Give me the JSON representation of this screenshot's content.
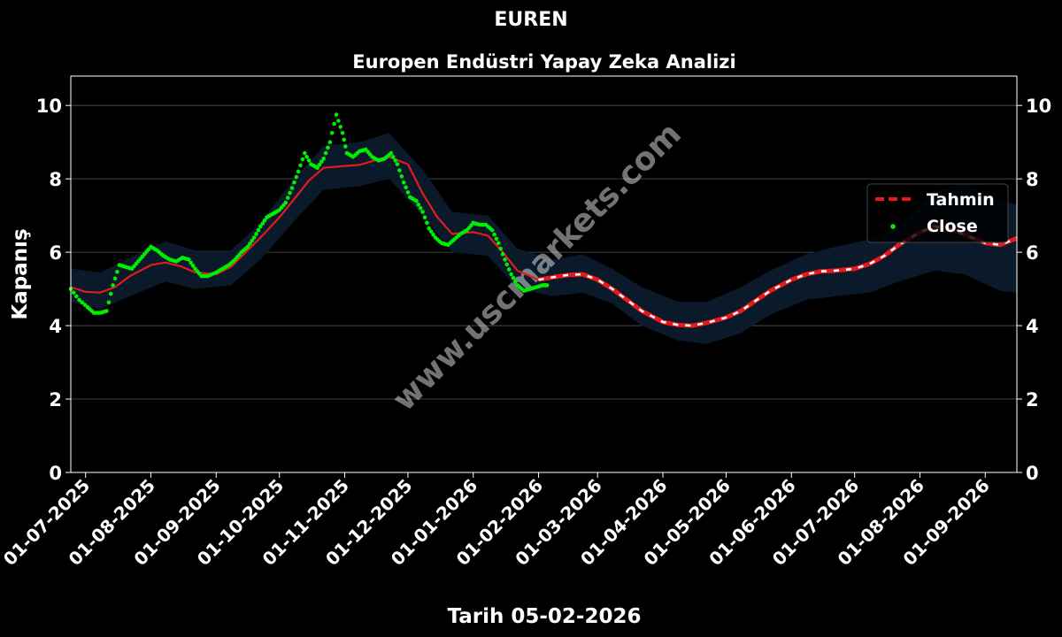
{
  "watermark": "www.uscmarkets.com",
  "colors": {
    "background": "#000000",
    "band": "#0a1a2a",
    "forecast": "#e41a1c",
    "close": "#00ee00",
    "text": "#ffffff",
    "grid": "#555555"
  },
  "chart_data": {
    "type": "line",
    "suptitle": "EUREN",
    "title": "Europen Endüstri Yapay Zeka Analizi",
    "xlabel": "Tarih 05-02-2026",
    "ylabel": "Kapanış",
    "ylim": [
      0,
      10.8
    ],
    "yticks": [
      0,
      2,
      4,
      6,
      8,
      10
    ],
    "xlim": [
      "2025-06-24",
      "2026-09-16"
    ],
    "xticks": [
      "2025-07-01",
      "2025-08-01",
      "2025-09-01",
      "2025-10-01",
      "2025-11-01",
      "2025-12-01",
      "2026-01-01",
      "2026-02-01",
      "2026-03-01",
      "2026-04-01",
      "2026-05-01",
      "2026-06-01",
      "2026-07-01",
      "2026-08-01",
      "2026-09-01"
    ],
    "xtick_labels": [
      "01-07-2025",
      "01-08-2025",
      "01-09-2025",
      "01-10-2025",
      "01-11-2025",
      "01-12-2025",
      "01-01-2026",
      "01-02-2026",
      "01-03-2026",
      "01-04-2026",
      "01-05-2026",
      "01-06-2026",
      "01-07-2026",
      "01-08-2026",
      "01-09-2026"
    ],
    "grid": true,
    "legend_position": "center-right",
    "series": [
      {
        "name": "Tahmin",
        "style": "dashed",
        "x": [
          "2025-06-24",
          "2025-07-01",
          "2025-07-08",
          "2025-07-15",
          "2025-07-22",
          "2025-08-01",
          "2025-08-08",
          "2025-08-15",
          "2025-08-22",
          "2025-09-01",
          "2025-09-08",
          "2025-09-15",
          "2025-09-22",
          "2025-10-01",
          "2025-10-08",
          "2025-10-15",
          "2025-10-22",
          "2025-11-01",
          "2025-11-08",
          "2025-11-15",
          "2025-11-22",
          "2025-12-01",
          "2025-12-08",
          "2025-12-15",
          "2025-12-22",
          "2026-01-01",
          "2026-01-08",
          "2026-01-15",
          "2026-01-22",
          "2026-02-01",
          "2026-02-08",
          "2026-02-15",
          "2026-02-22",
          "2026-03-01",
          "2026-03-08",
          "2026-03-15",
          "2026-03-22",
          "2026-04-01",
          "2026-04-08",
          "2026-04-15",
          "2026-04-22",
          "2026-05-01",
          "2026-05-08",
          "2026-05-15",
          "2026-05-22",
          "2026-06-01",
          "2026-06-08",
          "2026-06-15",
          "2026-06-22",
          "2026-07-01",
          "2026-07-08",
          "2026-07-15",
          "2026-07-22",
          "2026-08-01",
          "2026-08-08",
          "2026-08-15",
          "2026-08-22",
          "2026-09-01",
          "2026-09-08",
          "2026-09-16"
        ],
        "y": [
          5.05,
          4.92,
          4.9,
          5.05,
          5.35,
          5.65,
          5.72,
          5.62,
          5.45,
          5.4,
          5.6,
          6.0,
          6.4,
          6.95,
          7.45,
          7.95,
          8.3,
          8.35,
          8.38,
          8.5,
          8.6,
          8.4,
          7.6,
          6.95,
          6.5,
          6.55,
          6.45,
          6.0,
          5.5,
          5.25,
          5.32,
          5.38,
          5.4,
          5.25,
          5.0,
          4.7,
          4.4,
          4.1,
          4.02,
          4.0,
          4.08,
          4.22,
          4.4,
          4.68,
          4.95,
          5.25,
          5.4,
          5.48,
          5.5,
          5.55,
          5.68,
          5.9,
          6.2,
          6.55,
          6.7,
          6.65,
          6.48,
          6.25,
          6.2,
          6.38
        ]
      },
      {
        "name": "Close",
        "style": "dots",
        "x": [
          "2025-06-24",
          "2025-06-28",
          "2025-07-02",
          "2025-07-05",
          "2025-07-08",
          "2025-07-11",
          "2025-07-14",
          "2025-07-17",
          "2025-07-20",
          "2025-07-23",
          "2025-07-26",
          "2025-07-29",
          "2025-08-01",
          "2025-08-04",
          "2025-08-07",
          "2025-08-10",
          "2025-08-13",
          "2025-08-16",
          "2025-08-19",
          "2025-08-22",
          "2025-08-25",
          "2025-08-28",
          "2025-09-01",
          "2025-09-04",
          "2025-09-07",
          "2025-09-10",
          "2025-09-13",
          "2025-09-16",
          "2025-09-19",
          "2025-09-22",
          "2025-09-25",
          "2025-09-28",
          "2025-10-01",
          "2025-10-04",
          "2025-10-07",
          "2025-10-10",
          "2025-10-13",
          "2025-10-16",
          "2025-10-19",
          "2025-10-22",
          "2025-10-25",
          "2025-10-28",
          "2025-10-31",
          "2025-11-02",
          "2025-11-05",
          "2025-11-08",
          "2025-11-11",
          "2025-11-14",
          "2025-11-17",
          "2025-11-20",
          "2025-11-23",
          "2025-11-26",
          "2025-11-29",
          "2025-12-02",
          "2025-12-05",
          "2025-12-08",
          "2025-12-11",
          "2025-12-14",
          "2025-12-17",
          "2025-12-20",
          "2025-12-23",
          "2025-12-26",
          "2025-12-29",
          "2026-01-01",
          "2026-01-04",
          "2026-01-07",
          "2026-01-10",
          "2026-01-13",
          "2026-01-16",
          "2026-01-19",
          "2026-01-22",
          "2026-01-25",
          "2026-01-28",
          "2026-01-31",
          "2026-02-03",
          "2026-02-05"
        ],
        "y": [
          5.0,
          4.7,
          4.5,
          4.35,
          4.35,
          4.4,
          5.1,
          5.65,
          5.6,
          5.55,
          5.75,
          5.95,
          6.15,
          6.05,
          5.9,
          5.8,
          5.75,
          5.85,
          5.8,
          5.55,
          5.35,
          5.35,
          5.45,
          5.55,
          5.65,
          5.8,
          6.0,
          6.15,
          6.4,
          6.7,
          6.95,
          7.05,
          7.15,
          7.35,
          7.75,
          8.2,
          8.7,
          8.4,
          8.3,
          8.55,
          9.0,
          9.75,
          9.25,
          8.7,
          8.6,
          8.75,
          8.8,
          8.6,
          8.5,
          8.55,
          8.7,
          8.4,
          7.9,
          7.5,
          7.4,
          7.1,
          6.65,
          6.4,
          6.25,
          6.2,
          6.35,
          6.5,
          6.6,
          6.8,
          6.75,
          6.75,
          6.6,
          6.25,
          5.8,
          5.4,
          5.1,
          4.95,
          5.0,
          5.05,
          5.1,
          5.1
        ]
      }
    ],
    "band": {
      "x": [
        "2025-06-24",
        "2025-07-08",
        "2025-07-22",
        "2025-08-08",
        "2025-08-22",
        "2025-09-08",
        "2025-09-22",
        "2025-10-08",
        "2025-10-22",
        "2025-11-08",
        "2025-11-22",
        "2025-12-08",
        "2025-12-22",
        "2026-01-08",
        "2026-01-22",
        "2026-02-08",
        "2026-02-22",
        "2026-03-08",
        "2026-03-22",
        "2026-04-08",
        "2026-04-22",
        "2026-05-08",
        "2026-05-22",
        "2026-06-08",
        "2026-06-22",
        "2026-07-08",
        "2026-07-22",
        "2026-08-08",
        "2026-08-22",
        "2026-09-08",
        "2026-09-16"
      ],
      "lower": [
        4.65,
        4.45,
        4.8,
        5.2,
        5.0,
        5.1,
        5.8,
        6.85,
        7.7,
        7.8,
        8.0,
        7.0,
        6.0,
        5.9,
        5.0,
        4.8,
        4.9,
        4.6,
        4.0,
        3.6,
        3.5,
        3.8,
        4.3,
        4.7,
        4.8,
        4.9,
        5.2,
        5.5,
        5.4,
        4.95,
        4.9
      ],
      "upper": [
        5.55,
        5.45,
        5.85,
        6.3,
        6.05,
        6.05,
        6.8,
        8.0,
        8.9,
        9.0,
        9.25,
        8.25,
        7.1,
        7.0,
        6.1,
        5.8,
        5.95,
        5.55,
        5.05,
        4.65,
        4.65,
        5.05,
        5.5,
        5.95,
        6.15,
        6.35,
        6.75,
        7.65,
        7.85,
        7.4,
        7.3
      ]
    }
  }
}
